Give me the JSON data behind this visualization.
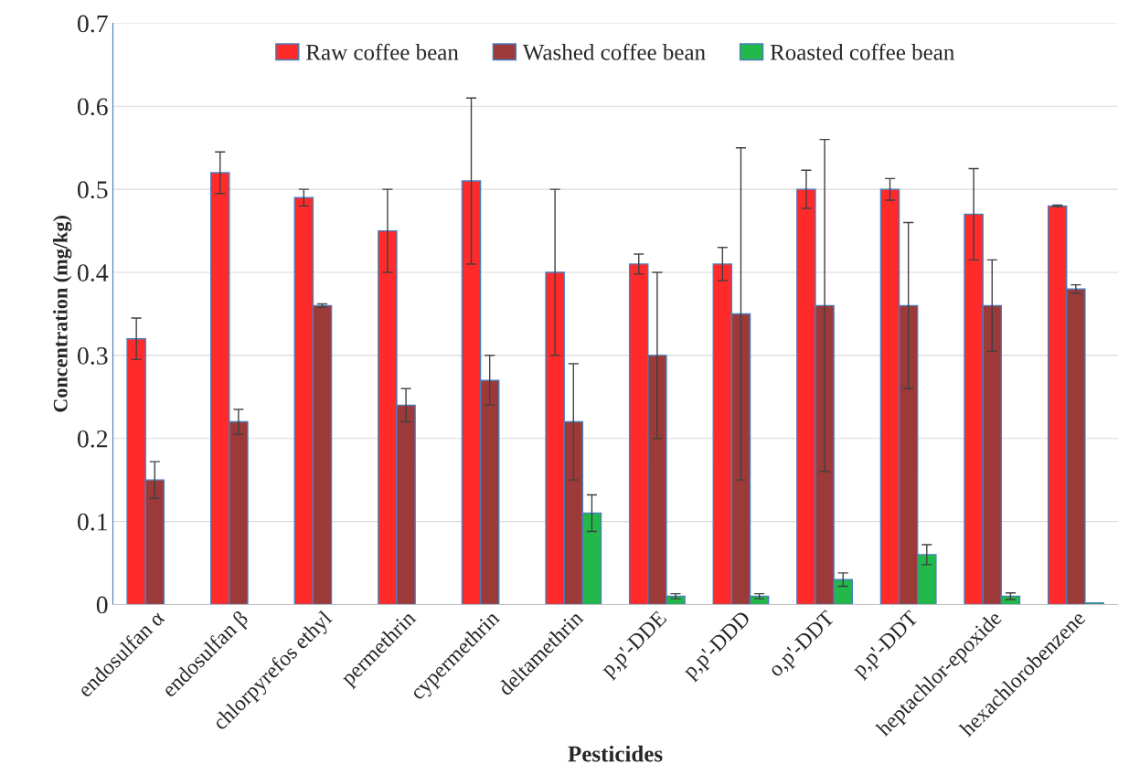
{
  "chart_data": {
    "type": "bar",
    "xlabel": "Pesticides",
    "ylabel": "Concentration (mg/kg)",
    "categories": [
      "endosulfan α",
      "endosulfan β",
      "chlorpyrefos ethyl",
      "permethrin",
      "cypermethrin",
      "deltamethrin",
      "p,p'-DDE",
      "p,p'-DDD",
      "o,p'-DDT",
      "p,p'-DDT",
      "heptachlor-epoxide",
      "hexachlorobenzene"
    ],
    "series": [
      {
        "name": "Raw coffee bean",
        "color": "#ff2a2a",
        "values": [
          0.32,
          0.52,
          0.49,
          0.45,
          0.51,
          0.4,
          0.41,
          0.41,
          0.5,
          0.5,
          0.47,
          0.48
        ],
        "errors": [
          0.025,
          0.025,
          0.01,
          0.05,
          0.1,
          0.1,
          0.012,
          0.02,
          0.023,
          0.013,
          0.055,
          0.001
        ]
      },
      {
        "name": "Washed coffee bean",
        "color": "#9c3a3a",
        "values": [
          0.15,
          0.22,
          0.36,
          0.24,
          0.27,
          0.22,
          0.3,
          0.35,
          0.36,
          0.36,
          0.36,
          0.38
        ],
        "errors": [
          0.022,
          0.015,
          0.002,
          0.02,
          0.03,
          0.07,
          0.1,
          0.2,
          0.2,
          0.1,
          0.055,
          0.005
        ]
      },
      {
        "name": "Roasted coffee bean",
        "color": "#22b84a",
        "values": [
          null,
          null,
          null,
          null,
          null,
          0.11,
          0.01,
          0.01,
          0.03,
          0.06,
          0.01,
          0.002
        ],
        "errors": [
          null,
          null,
          null,
          null,
          null,
          0.022,
          0.003,
          0.003,
          0.008,
          0.012,
          0.004,
          null
        ]
      }
    ],
    "ylim": [
      0,
      0.7
    ],
    "yticks": [
      {
        "value": 0,
        "label": "0"
      },
      0.1,
      0.2,
      0.3,
      0.4,
      0.5,
      0.6,
      0.7
    ],
    "grid": "y",
    "legend": "top"
  }
}
